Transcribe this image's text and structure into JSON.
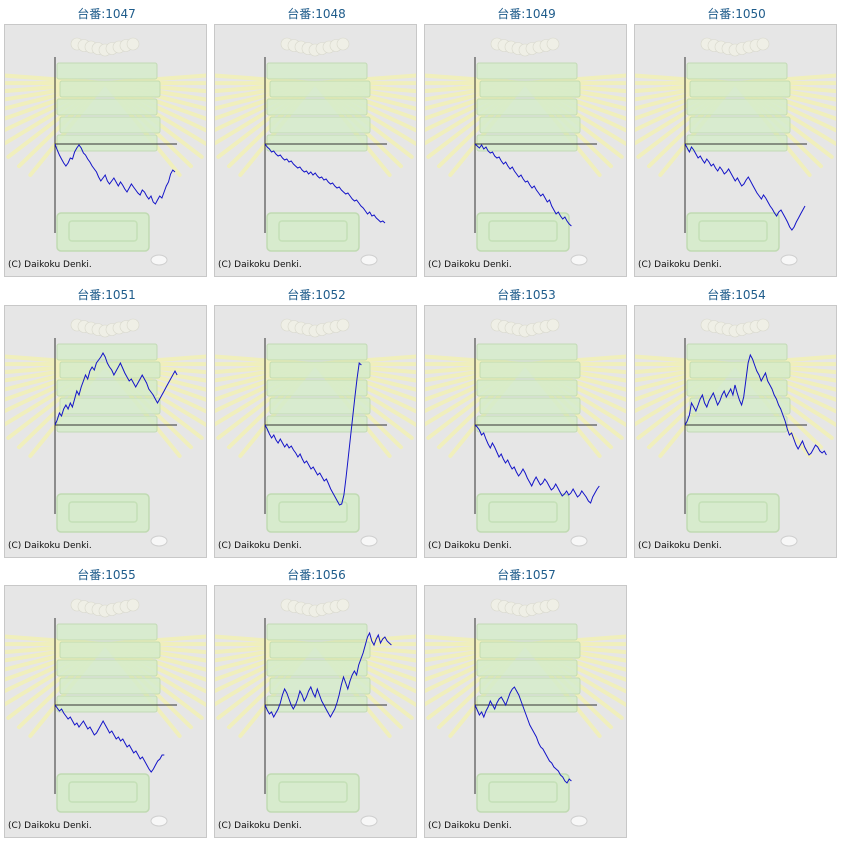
{
  "charts": [
    {
      "title": "台番:1047",
      "copyright": "(C) Daikoku Denki.",
      "values": [
        0,
        -6,
        -11,
        -15,
        -19,
        -22,
        -19,
        -14,
        -15,
        -8,
        -4,
        -1,
        -4,
        -9,
        -11,
        -15,
        -18,
        -22,
        -25,
        -28,
        -33,
        -37,
        -34,
        -31,
        -37,
        -40,
        -37,
        -34,
        -38,
        -42,
        -38,
        -41,
        -45,
        -48,
        -44,
        -40,
        -43,
        -46,
        -49,
        -51,
        -46,
        -48,
        -52,
        -55,
        -52,
        -58,
        -60,
        -56,
        -52,
        -54,
        -48,
        -42,
        -38,
        -30,
        -26,
        -28
      ]
    },
    {
      "title": "台番:1048",
      "copyright": "(C) Daikoku Denki.",
      "values": [
        0,
        -3,
        -5,
        -8,
        -7,
        -10,
        -12,
        -11,
        -14,
        -16,
        -15,
        -18,
        -17,
        -20,
        -22,
        -24,
        -23,
        -26,
        -28,
        -27,
        -30,
        -28,
        -31,
        -29,
        -32,
        -34,
        -33,
        -36,
        -35,
        -38,
        -40,
        -39,
        -42,
        -44,
        -43,
        -46,
        -48,
        -50,
        -49,
        -52,
        -55,
        -57,
        -56,
        -59,
        -62,
        -64,
        -67,
        -70,
        -68,
        -72,
        -71,
        -74,
        -76,
        -78,
        -77,
        -79
      ]
    },
    {
      "title": "台番:1049",
      "copyright": "(C) Daikoku Denki.",
      "values": [
        0,
        -2,
        -4,
        -1,
        -5,
        -3,
        -7,
        -9,
        -8,
        -12,
        -14,
        -13,
        -17,
        -20,
        -18,
        -22,
        -25,
        -23,
        -27,
        -30,
        -33,
        -31,
        -35,
        -38,
        -37,
        -41,
        -44,
        -42,
        -46,
        -49,
        -52,
        -50,
        -54,
        -58,
        -56,
        -62,
        -66,
        -70,
        -68,
        -72,
        -75,
        -73,
        -77,
        -80,
        -82
      ]
    },
    {
      "title": "台番:1050",
      "copyright": "(C) Daikoku Denki.",
      "values": [
        0,
        -4,
        -8,
        -3,
        -6,
        -10,
        -14,
        -12,
        -16,
        -19,
        -15,
        -18,
        -22,
        -20,
        -24,
        -27,
        -23,
        -26,
        -30,
        -28,
        -25,
        -29,
        -33,
        -37,
        -34,
        -38,
        -42,
        -40,
        -36,
        -33,
        -37,
        -41,
        -45,
        -49,
        -52,
        -55,
        -51,
        -54,
        -58,
        -62,
        -65,
        -69,
        -72,
        -68,
        -66,
        -70,
        -74,
        -78,
        -83,
        -86,
        -83,
        -78,
        -74,
        -70,
        -66,
        -62
      ]
    },
    {
      "title": "台番:1051",
      "copyright": "(C) Daikoku Denki.",
      "values": [
        0,
        5,
        12,
        9,
        16,
        20,
        16,
        22,
        18,
        26,
        34,
        30,
        38,
        44,
        50,
        46,
        54,
        58,
        55,
        62,
        65,
        68,
        72,
        68,
        62,
        58,
        55,
        50,
        54,
        58,
        62,
        57,
        52,
        48,
        44,
        46,
        42,
        38,
        42,
        46,
        50,
        46,
        42,
        36,
        33,
        30,
        26,
        22,
        26,
        30,
        34,
        38,
        42,
        46,
        50,
        54,
        50
      ]
    },
    {
      "title": "台番:1052",
      "copyright": "(C) Daikoku Denki.",
      "values": [
        0,
        -4,
        -9,
        -13,
        -10,
        -15,
        -18,
        -14,
        -18,
        -22,
        -19,
        -23,
        -21,
        -25,
        -28,
        -32,
        -29,
        -34,
        -38,
        -36,
        -40,
        -44,
        -42,
        -46,
        -50,
        -48,
        -52,
        -56,
        -54,
        -59,
        -64,
        -68,
        -72,
        -76,
        -80,
        -79,
        -70,
        -52,
        -32,
        -12,
        8,
        28,
        46,
        62,
        60
      ]
    },
    {
      "title": "台番:1053",
      "copyright": "(C) Daikoku Denki.",
      "values": [
        0,
        -2,
        -5,
        -10,
        -8,
        -14,
        -19,
        -23,
        -18,
        -22,
        -27,
        -32,
        -29,
        -34,
        -38,
        -35,
        -40,
        -44,
        -42,
        -47,
        -51,
        -48,
        -44,
        -48,
        -53,
        -57,
        -61,
        -56,
        -52,
        -56,
        -60,
        -58,
        -54,
        -57,
        -61,
        -65,
        -63,
        -59,
        -63,
        -67,
        -71,
        -69,
        -66,
        -70,
        -68,
        -64,
        -68,
        -72,
        -70,
        -66,
        -69,
        -72,
        -76,
        -78,
        -72,
        -68,
        -64,
        -61
      ]
    },
    {
      "title": "台番:1054",
      "copyright": "(C) Daikoku Denki.",
      "values": [
        0,
        4,
        10,
        22,
        18,
        14,
        20,
        26,
        30,
        22,
        18,
        24,
        28,
        32,
        26,
        20,
        24,
        30,
        34,
        28,
        32,
        36,
        30,
        40,
        32,
        25,
        20,
        28,
        45,
        62,
        70,
        66,
        60,
        54,
        50,
        44,
        48,
        52,
        44,
        40,
        36,
        30,
        26,
        20,
        16,
        10,
        4,
        -4,
        -10,
        -8,
        -14,
        -20,
        -24,
        -20,
        -16,
        -22,
        -26,
        -30,
        -28,
        -24,
        -20,
        -22,
        -26,
        -28,
        -26,
        -30
      ]
    },
    {
      "title": "台番:1055",
      "copyright": "(C) Daikoku Denki.",
      "values": [
        0,
        -3,
        -6,
        -4,
        -8,
        -11,
        -14,
        -12,
        -16,
        -20,
        -18,
        -22,
        -19,
        -16,
        -20,
        -24,
        -22,
        -26,
        -30,
        -28,
        -24,
        -20,
        -16,
        -20,
        -24,
        -28,
        -26,
        -30,
        -34,
        -32,
        -36,
        -34,
        -38,
        -42,
        -40,
        -44,
        -48,
        -46,
        -50,
        -54,
        -52,
        -56,
        -60,
        -64,
        -67,
        -64,
        -60,
        -56,
        -54,
        -50,
        -50
      ]
    },
    {
      "title": "台番:1056",
      "copyright": "(C) Daikoku Denki.",
      "values": [
        0,
        -5,
        -9,
        -7,
        -12,
        -8,
        -4,
        2,
        10,
        16,
        12,
        6,
        0,
        -4,
        0,
        6,
        14,
        10,
        4,
        8,
        14,
        18,
        12,
        8,
        16,
        10,
        4,
        0,
        -4,
        -8,
        -12,
        -8,
        -4,
        2,
        10,
        20,
        28,
        22,
        16,
        24,
        30,
        34,
        30,
        40,
        46,
        52,
        60,
        68,
        72,
        64,
        60,
        66,
        70,
        62,
        66,
        68,
        64,
        62,
        60
      ]
    },
    {
      "title": "台番:1057",
      "copyright": "(C) Daikoku Denki.",
      "values": [
        0,
        -5,
        -10,
        -7,
        -12,
        -6,
        -2,
        4,
        0,
        -4,
        2,
        6,
        8,
        4,
        0,
        6,
        12,
        16,
        18,
        14,
        10,
        4,
        -2,
        -8,
        -14,
        -20,
        -24,
        -28,
        -32,
        -38,
        -42,
        -44,
        -48,
        -52,
        -56,
        -58,
        -62,
        -64,
        -66,
        -70,
        -72,
        -76,
        -78,
        -74,
        -76
      ]
    }
  ]
}
